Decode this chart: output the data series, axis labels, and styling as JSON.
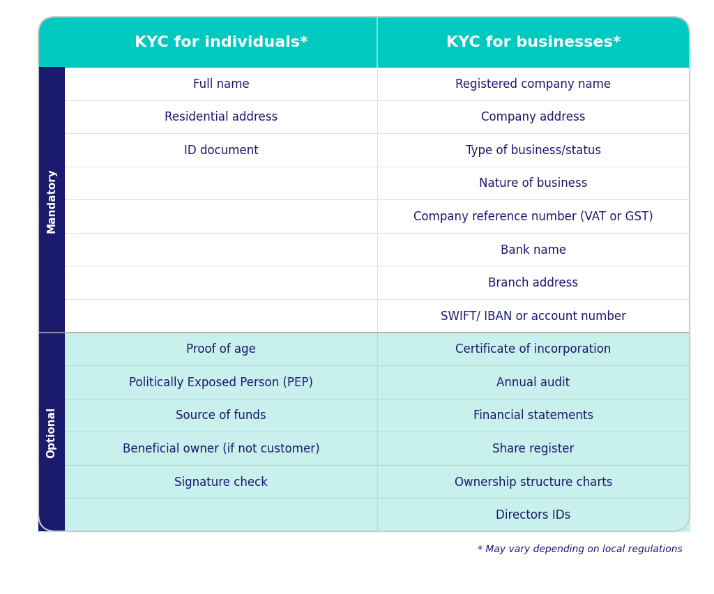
{
  "header": {
    "col1": "KYC for individuals*",
    "col2": "KYC for businesses*",
    "bg_color": "#00C9C0",
    "text_color": "#FFFFFF",
    "font_size": 16
  },
  "mandatory_rows": {
    "label": "Mandatory",
    "col1": [
      "Full name",
      "Residential address",
      "ID document",
      "",
      "",
      "",
      "",
      ""
    ],
    "col2": [
      "Registered company name",
      "Company address",
      "Type of business/status",
      "Nature of business",
      "Company reference number (VAT or GST)",
      "Bank name",
      "Branch address",
      "SWIFT/ IBAN or account number"
    ],
    "bg_color": "#FFFFFF",
    "text_color": "#1a1a6e",
    "line_color": "#e0e0e0"
  },
  "optional_rows": {
    "label": "Optional",
    "col1": [
      "Proof of age",
      "Politically Exposed Person (PEP)",
      "Source of funds",
      "Beneficial owner (if not customer)",
      "Signature check",
      ""
    ],
    "col2": [
      "Certificate of incorporation",
      "Annual audit",
      "Financial statements",
      "Share register",
      "Ownership structure charts",
      "Directors IDs"
    ],
    "bg_color": "#c8f0ec",
    "text_color": "#1a1a6e",
    "line_color": "#b0ddd8"
  },
  "footnote": "* May vary depending on local regulations",
  "footnote_color": "#1a1a6e",
  "sidebar_color": "#1a1a6e",
  "sidebar_text_color": "#FFFFFF",
  "outer_bg": "#FFFFFF",
  "table_border_color": "#d0d0d0",
  "cell_text_fontsize": 12,
  "sidebar_fontsize": 11
}
